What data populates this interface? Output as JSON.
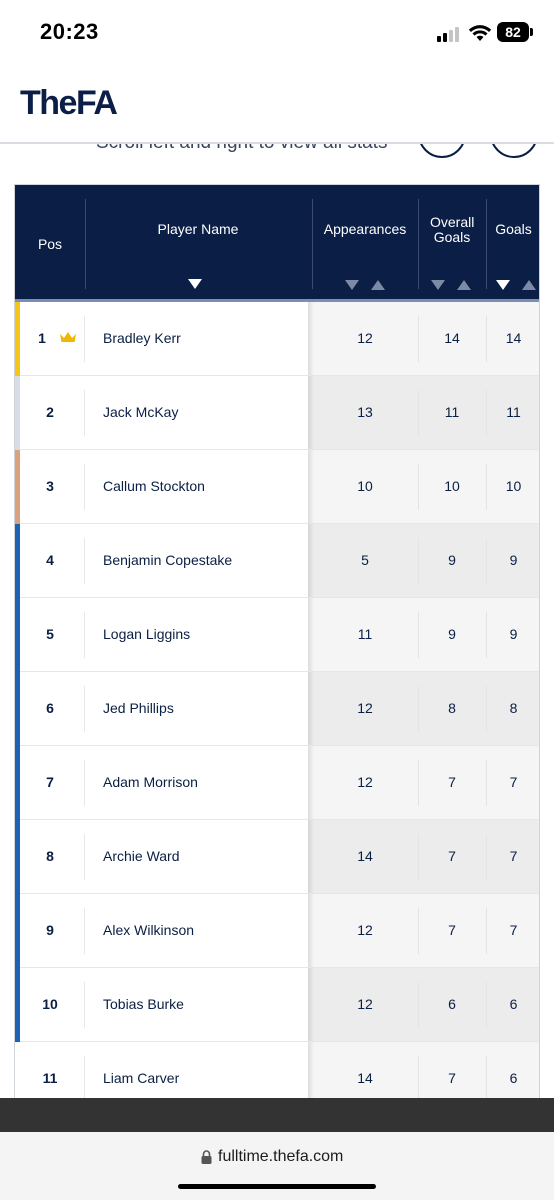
{
  "status_bar": {
    "time": "20:23",
    "battery": "82",
    "icons": [
      "cellular-signal-icon",
      "wifi-icon",
      "battery-icon"
    ]
  },
  "header": {
    "logo": "TheFA"
  },
  "scroll_hint": "Scroll left and right to view all stats",
  "table": {
    "columns": {
      "pos": "Pos",
      "player_name": "Player Name",
      "appearances": "Appearances",
      "overall_goals": "Overall Goals",
      "goals": "Goals"
    },
    "sort_icons": [
      "sort-descending-icon",
      "sort-ascending-icon"
    ],
    "rank_colors": {
      "gold": "#f5c518",
      "silver": "#d7dde6",
      "bronze": "#d9a27c",
      "default": "#1d62b5"
    },
    "rows": [
      {
        "pos": "1",
        "name": "Bradley Kerr",
        "appearances": "12",
        "overall_goals": "14",
        "goals": "14",
        "badge": "crown-icon"
      },
      {
        "pos": "2",
        "name": "Jack McKay",
        "appearances": "13",
        "overall_goals": "11",
        "goals": "11"
      },
      {
        "pos": "3",
        "name": "Callum Stockton",
        "appearances": "10",
        "overall_goals": "10",
        "goals": "10"
      },
      {
        "pos": "4",
        "name": "Benjamin Copestake",
        "appearances": "5",
        "overall_goals": "9",
        "goals": "9"
      },
      {
        "pos": "5",
        "name": "Logan Liggins",
        "appearances": "11",
        "overall_goals": "9",
        "goals": "9"
      },
      {
        "pos": "6",
        "name": "Jed Phillips",
        "appearances": "12",
        "overall_goals": "8",
        "goals": "8"
      },
      {
        "pos": "7",
        "name": "Adam Morrison",
        "appearances": "12",
        "overall_goals": "7",
        "goals": "7"
      },
      {
        "pos": "8",
        "name": "Archie Ward",
        "appearances": "14",
        "overall_goals": "7",
        "goals": "7"
      },
      {
        "pos": "9",
        "name": "Alex Wilkinson",
        "appearances": "12",
        "overall_goals": "7",
        "goals": "7"
      },
      {
        "pos": "10",
        "name": "Tobias Burke",
        "appearances": "12",
        "overall_goals": "6",
        "goals": "6"
      },
      {
        "pos": "11",
        "name": "Liam Carver",
        "appearances": "14",
        "overall_goals": "7",
        "goals": "6"
      }
    ]
  },
  "browser": {
    "url": "fulltime.thefa.com"
  }
}
